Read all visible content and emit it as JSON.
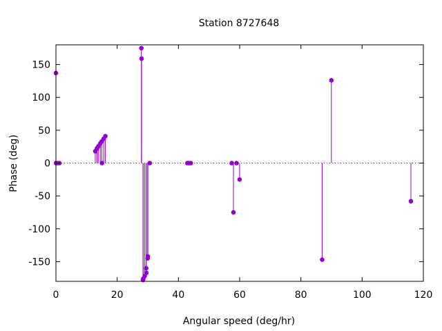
{
  "chart_data": {
    "type": "scatter",
    "style": "impulses-with-points",
    "title": "Station 8727648",
    "xlabel": "Angular speed (deg/hr)",
    "ylabel": "Phase (deg)",
    "xlim": [
      0,
      120
    ],
    "ylim": [
      -180,
      180
    ],
    "x_ticks": [
      0,
      20,
      40,
      60,
      80,
      100,
      120
    ],
    "y_ticks": [
      -150,
      -100,
      -50,
      0,
      50,
      100,
      150
    ],
    "x_tick_labels": [
      "0",
      "20",
      "40",
      "60",
      "80",
      "100",
      "120"
    ],
    "y_tick_labels": [
      "-150",
      "-100",
      "-50",
      "0",
      "50",
      "100",
      "150"
    ],
    "grid": false,
    "zero_line": "dotted",
    "color": "#9400d3",
    "points": [
      {
        "x": 0.0,
        "y": 137
      },
      {
        "x": 0.04,
        "y": 0
      },
      {
        "x": 0.08,
        "y": 0
      },
      {
        "x": 0.54,
        "y": 0
      },
      {
        "x": 1.1,
        "y": 0
      },
      {
        "x": 12.85,
        "y": 18
      },
      {
        "x": 13.4,
        "y": 22
      },
      {
        "x": 13.47,
        "y": 23
      },
      {
        "x": 13.94,
        "y": 26
      },
      {
        "x": 14.5,
        "y": 30
      },
      {
        "x": 14.96,
        "y": 33
      },
      {
        "x": 15.04,
        "y": 0
      },
      {
        "x": 15.59,
        "y": 37
      },
      {
        "x": 16.14,
        "y": 41
      },
      {
        "x": 27.9,
        "y": 175
      },
      {
        "x": 27.97,
        "y": 159
      },
      {
        "x": 28.44,
        "y": -178
      },
      {
        "x": 28.51,
        "y": -176
      },
      {
        "x": 28.99,
        "y": -172
      },
      {
        "x": 29.46,
        "y": -160
      },
      {
        "x": 29.53,
        "y": -167
      },
      {
        "x": 29.96,
        "y": -145
      },
      {
        "x": 30.04,
        "y": -142
      },
      {
        "x": 30.63,
        "y": 0
      },
      {
        "x": 42.93,
        "y": 0
      },
      {
        "x": 43.48,
        "y": 0
      },
      {
        "x": 44.03,
        "y": 0
      },
      {
        "x": 57.42,
        "y": 0
      },
      {
        "x": 57.97,
        "y": -75
      },
      {
        "x": 58.98,
        "y": 0
      },
      {
        "x": 59.98,
        "y": -25
      },
      {
        "x": 86.95,
        "y": -147
      },
      {
        "x": 89.96,
        "y": 126
      },
      {
        "x": 115.94,
        "y": -58
      }
    ]
  }
}
